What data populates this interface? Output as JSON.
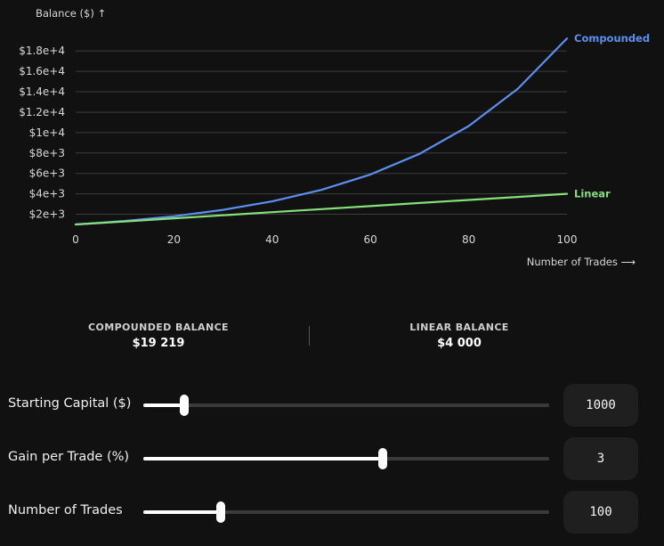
{
  "chart_data": {
    "type": "line",
    "ylabel": "Balance ($) ↑",
    "xlabel": "Number of Trades ⟶",
    "xlim": [
      0,
      100
    ],
    "ylim": [
      1000,
      19500
    ],
    "x_ticks": [
      0,
      20,
      40,
      60,
      80,
      100
    ],
    "x_tick_labels": [
      "0",
      "20",
      "40",
      "60",
      "80",
      "100"
    ],
    "y_ticks": [
      2000,
      4000,
      6000,
      8000,
      10000,
      12000,
      14000,
      16000,
      18000
    ],
    "y_tick_labels": [
      "$2e+3",
      "$4e+3",
      "$6e+3",
      "$8e+3",
      "$1e+4",
      "$1.2e+4",
      "$1.4e+4",
      "$1.6e+4",
      "$1.8e+4"
    ],
    "grid": true,
    "x": [
      0,
      10,
      20,
      30,
      40,
      50,
      60,
      70,
      80,
      90,
      100
    ],
    "series": [
      {
        "name": "Compounded",
        "color": "#5b8ff0",
        "values": [
          1000,
          1344,
          1806,
          2427,
          3262,
          4384,
          5892,
          7918,
          10641,
          14300,
          19219
        ]
      },
      {
        "name": "Linear",
        "color": "#86e07a",
        "values": [
          1000,
          1300,
          1600,
          1900,
          2200,
          2500,
          2800,
          3100,
          3400,
          3700,
          4000
        ]
      }
    ]
  },
  "stats": {
    "compounded_title": "COMPOUNDED BALANCE",
    "compounded_value": "$19 219",
    "linear_title": "LINEAR BALANCE",
    "linear_value": "$4 000"
  },
  "controls": [
    {
      "label": "Starting Capital ($)",
      "value": "1000",
      "fraction": 0.1
    },
    {
      "label": "Gain per Trade (%)",
      "value": "3",
      "fraction": 0.59
    },
    {
      "label": "Number of Trades",
      "value": "100",
      "fraction": 0.19
    }
  ]
}
